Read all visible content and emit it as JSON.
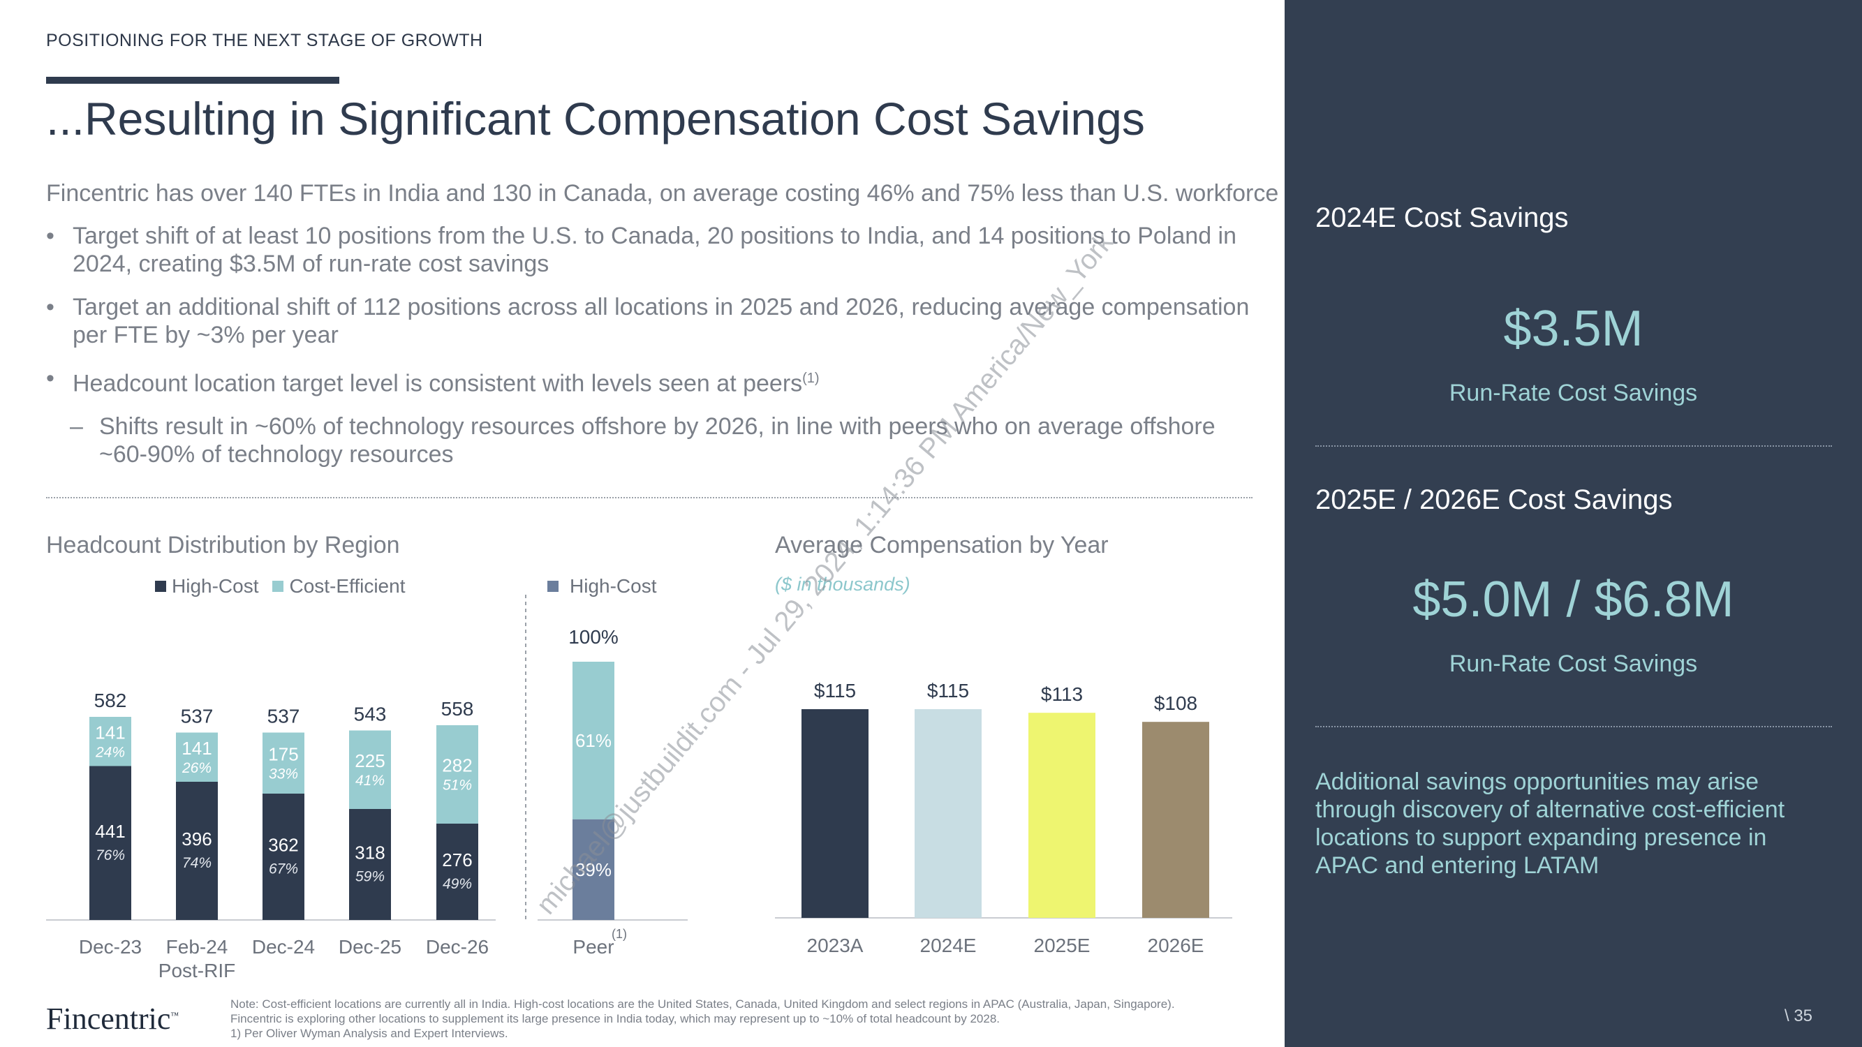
{
  "header": {
    "kicker": "POSITIONING FOR THE NEXT STAGE OF GROWTH",
    "title": "...Resulting in Significant Compensation Cost Savings"
  },
  "body": {
    "lead": "Fincentric has over 140 FTEs in India and 130 in Canada, on average costing 46% and 75% less than U.S. workforce",
    "bullet1": "Target shift of at least 10 positions from the U.S. to Canada, 20 positions to India, and 14 positions to Poland in 2024, creating $3.5M of run-rate cost savings",
    "bullet2": "Target an additional shift of 112 positions across all locations in 2025 and 2026, reducing average compensation per FTE by ~3% per year",
    "bullet3": "Headcount location target level is consistent with levels seen at peers",
    "bullet3_sup": "(1)",
    "sub1": "Shifts result in ~60% of technology resources offshore by 2026, in line with peers who on average offshore ~60-90% of technology resources",
    "bullet_symbol": "•",
    "dash_symbol": "–"
  },
  "chart_data": [
    {
      "type": "bar",
      "stacked": true,
      "title": "Headcount Distribution by Region",
      "categories": [
        "Dec-23",
        "Feb-24",
        "Dec-24",
        "Dec-25",
        "Dec-26"
      ],
      "category_sublabels": [
        "",
        "Post-RIF",
        "",
        "",
        ""
      ],
      "totals": [
        "582",
        "537",
        "537",
        "543",
        "558"
      ],
      "series": [
        {
          "name": "High-Cost",
          "color": "#2f3b4e",
          "values": [
            441,
            396,
            362,
            318,
            276
          ],
          "pct": [
            "76%",
            "74%",
            "67%",
            "59%",
            "49%"
          ]
        },
        {
          "name": "Cost-Efficient",
          "color": "#98ccd0",
          "values": [
            141,
            141,
            175,
            225,
            282
          ],
          "pct": [
            "24%",
            "26%",
            "33%",
            "41%",
            "51%"
          ]
        }
      ]
    },
    {
      "type": "bar",
      "stacked": true,
      "categories": [
        "Peer"
      ],
      "category_sup": "(1)",
      "total": "100%",
      "legend": "High-Cost",
      "series": [
        {
          "name": "High-Cost",
          "color": "#6b7e9c",
          "values": [
            39
          ],
          "labels": [
            "39%"
          ]
        },
        {
          "name": "Cost-Efficient",
          "color": "#98ccd0",
          "values": [
            61
          ],
          "labels": [
            "61%"
          ]
        }
      ]
    },
    {
      "type": "bar",
      "title": "Average Compensation by Year",
      "subtitle": "($ in thousands)",
      "categories": [
        "2023A",
        "2024E",
        "2025E",
        "2026E"
      ],
      "values": [
        115,
        115,
        113,
        108
      ],
      "labels": [
        "$115",
        "$115",
        "$113",
        "$108"
      ],
      "colors": [
        "#2f3b4e",
        "#c8dde3",
        "#eef570",
        "#9c8b6e"
      ]
    }
  ],
  "panel": {
    "s1_title": "2024E Cost Savings",
    "s1_value": "$3.5M",
    "s1_sub": "Run-Rate Cost Savings",
    "s2_title": "2025E / 2026E Cost Savings",
    "s2_value": "$5.0M / $6.8M",
    "s2_sub": "Run-Rate Cost Savings",
    "note": "Additional savings opportunities may arise through discovery of alternative cost-efficient locations to support expanding presence in APAC and entering LATAM"
  },
  "footer": {
    "note1": "Note: Cost-efficient locations are currently all in India. High-cost locations are the United States, Canada, United Kingdom and select regions in APAC (Australia, Japan, Singapore).",
    "note2": "Fincentric is exploring other locations to supplement its large presence in India today, which may represent up to ~10% of total headcount by 2028.",
    "note3": "1)      Per Oliver Wyman Analysis and Expert Interviews.",
    "logo": "Fincentric",
    "logo_tm": "™",
    "page": "\\ 35"
  },
  "watermark": "michael@justbuildit.com - Jul 29, 2024, 1:14:36 PM America/New_York"
}
